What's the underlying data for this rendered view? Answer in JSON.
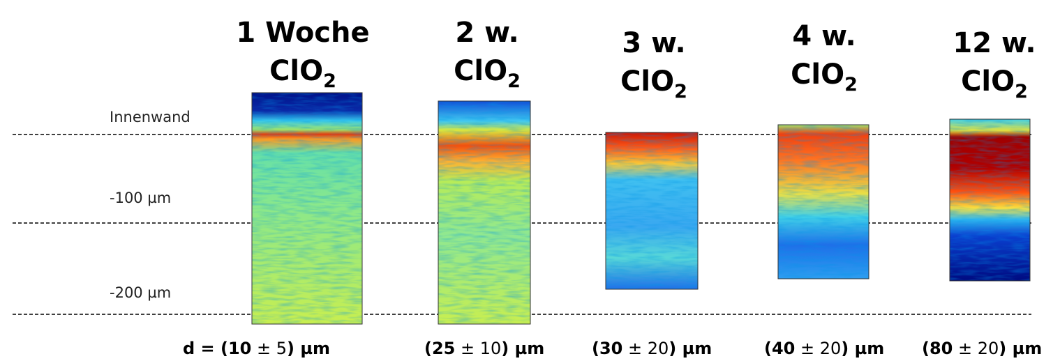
{
  "panels": [
    {
      "title": "1 Woche",
      "formula": "ClO",
      "subscript": "2",
      "thickness": {
        "bold_start": "d = (10",
        "regular": " ± 5",
        "bold_end": ") µm"
      }
    },
    {
      "title": "2 w.",
      "formula": "ClO",
      "subscript": "2",
      "thickness": {
        "bold_start": "(25",
        "regular": " ± 10",
        "bold_end": ") µm"
      }
    },
    {
      "title": "3 w.",
      "formula": "ClO",
      "subscript": "2",
      "thickness": {
        "bold_start": "(30",
        "regular": " ± 20",
        "bold_end": ") µm"
      }
    },
    {
      "title": "4 w.",
      "formula": "ClO",
      "subscript": "2",
      "thickness": {
        "bold_start": "(40",
        "regular": " ± 20",
        "bold_end": ") µm"
      }
    },
    {
      "title": "12 w.",
      "formula": "ClO",
      "subscript": "2",
      "thickness": {
        "bold_start": "(80",
        "regular": " ± 20",
        "bold_end": ") µm"
      }
    }
  ],
  "levels": [
    "Innenwand",
    "-100 µm",
    "-200 µm"
  ]
}
